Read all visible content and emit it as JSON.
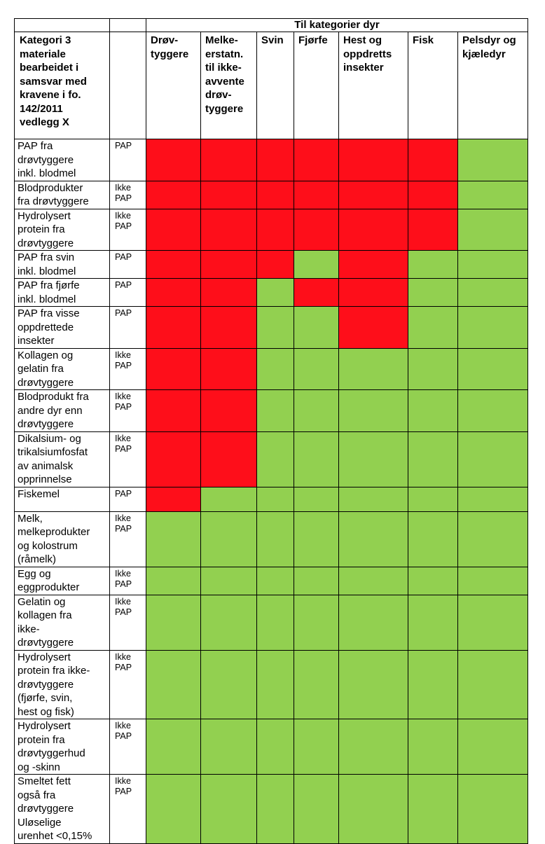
{
  "table": {
    "group_header": "Til kategorier dyr",
    "category_header": "Kategori 3\nmateriale\nbearbeidet i\nsamsvar med\nkravene i fo.\n142/2011\nvedlegg X",
    "type_header": "",
    "columns": [
      "Drøv-\ntyggere",
      "Melke-\nerstatn.\ntil ikke-\navvente\ndrøv-\ntyggere",
      "Svin",
      "Fjørfe",
      "Hest og\noppdretts\ninsekter",
      "Fisk",
      "Pelsdyr og\nkjæledyr"
    ],
    "colors": {
      "not_allowed": "#fe0e1a",
      "allowed": "#92d050"
    },
    "rows": [
      {
        "label": "PAP fra\ndrøvtyggere\ninkl. blodmel",
        "type": "PAP",
        "cells": [
          "red",
          "red",
          "red",
          "red",
          "red",
          "red",
          "green"
        ]
      },
      {
        "label": "Blodprodukter\nfra drøvtyggere",
        "type": "Ikke\nPAP",
        "cells": [
          "red",
          "red",
          "red",
          "red",
          "red",
          "red",
          "green"
        ]
      },
      {
        "label": "Hydrolysert\nprotein fra\ndrøvtyggere",
        "type": "Ikke\nPAP",
        "cells": [
          "red",
          "red",
          "red",
          "red",
          "red",
          "red",
          "green"
        ]
      },
      {
        "label": "PAP fra svin\ninkl. blodmel",
        "type": "PAP",
        "cells": [
          "red",
          "red",
          "red",
          "green",
          "red",
          "green",
          "green"
        ]
      },
      {
        "label": "PAP fra fjørfe\ninkl. blodmel",
        "type": "PAP",
        "cells": [
          "red",
          "red",
          "green",
          "red",
          "red",
          "green",
          "green"
        ]
      },
      {
        "label": "PAP fra visse\noppdrettede\ninsekter",
        "type": "PAP",
        "cells": [
          "red",
          "red",
          "green",
          "green",
          "red",
          "green",
          "green"
        ]
      },
      {
        "label": "Kollagen og\ngelatin fra\ndrøvtyggere",
        "type": "Ikke\nPAP",
        "cells": [
          "red",
          "red",
          "green",
          "green",
          "green",
          "green",
          "green"
        ]
      },
      {
        "label": "Blodprodukt fra\nandre dyr enn\ndrøvtyggere",
        "type": "Ikke\nPAP",
        "cells": [
          "red",
          "red",
          "green",
          "green",
          "green",
          "green",
          "green"
        ]
      },
      {
        "label": "Dikalsium- og\ntrikalsiumfosfat\nav animalsk\nopprinnelse",
        "type": "Ikke\nPAP",
        "cells": [
          "red",
          "red",
          "green",
          "green",
          "green",
          "green",
          "green"
        ]
      },
      {
        "label": "Fiskemel",
        "type": "PAP",
        "cells": [
          "red",
          "green",
          "green",
          "green",
          "green",
          "green",
          "green"
        ]
      },
      {
        "label": "Melk,\nmelkeprodukter\nog kolostrum\n(råmelk)",
        "type": "Ikke\nPAP",
        "cells": [
          "green",
          "green",
          "green",
          "green",
          "green",
          "green",
          "green"
        ]
      },
      {
        "label": "Egg og\neggprodukter",
        "type": "Ikke\nPAP",
        "cells": [
          "green",
          "green",
          "green",
          "green",
          "green",
          "green",
          "green"
        ]
      },
      {
        "label": "Gelatin og\nkollagen fra\nikke-\ndrøvtyggere",
        "type": "Ikke\nPAP",
        "cells": [
          "green",
          "green",
          "green",
          "green",
          "green",
          "green",
          "green"
        ]
      },
      {
        "label": "Hydrolysert\nprotein fra ikke-\ndrøvtyggere\n(fjørfe, svin,\nhest og fisk)",
        "type": "Ikke\nPAP",
        "cells": [
          "green",
          "green",
          "green",
          "green",
          "green",
          "green",
          "green"
        ]
      },
      {
        "label": "Hydrolysert\nprotein fra\ndrøvtyggerhud\nog -skinn",
        "type": "Ikke\nPAP",
        "cells": [
          "green",
          "green",
          "green",
          "green",
          "green",
          "green",
          "green"
        ]
      },
      {
        "label": "Smeltet fett\nogså fra\ndrøvtyggere\nUløselige\nurenhet <0,15%",
        "type": "Ikke\nPAP",
        "cells": [
          "green",
          "green",
          "green",
          "green",
          "green",
          "green",
          "green"
        ]
      }
    ]
  }
}
